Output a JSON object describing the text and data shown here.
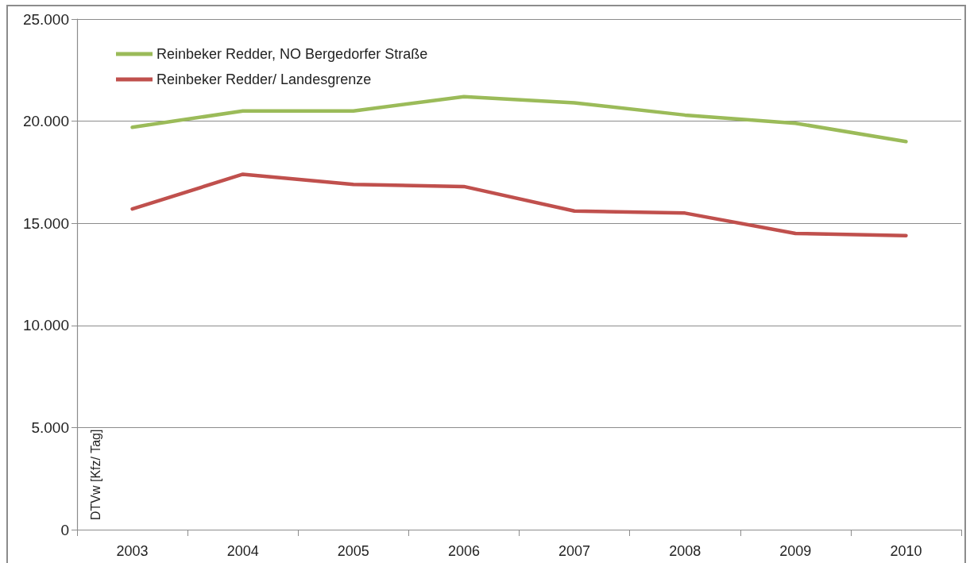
{
  "chart_data": {
    "type": "line",
    "ylabel": "DTVw [Kfz/ Tag]",
    "categories": [
      "2003",
      "2004",
      "2005",
      "2006",
      "2007",
      "2008",
      "2009",
      "2010"
    ],
    "series": [
      {
        "name": "Reinbeker Redder, NO Bergedorfer Straße",
        "color": "#9bbb59",
        "values": [
          19700,
          20500,
          20500,
          21200,
          20900,
          20300,
          19900,
          19000
        ]
      },
      {
        "name": "Reinbeker Redder/ Landesgrenze",
        "color": "#c0504d",
        "values": [
          15700,
          17400,
          16900,
          16800,
          15600,
          15500,
          14500,
          14400
        ]
      }
    ],
    "ylim": [
      0,
      25000
    ],
    "yticks": [
      0,
      {
        "value": 5000,
        "label": "5.000"
      },
      {
        "value": 10000,
        "label": "10.000"
      },
      {
        "value": 15000,
        "label": "15.000"
      },
      {
        "value": 20000,
        "label": "20.000"
      },
      {
        "value": 25000,
        "label": "25.000"
      }
    ],
    "grid": "y",
    "legend": "top left",
    "marker": "none",
    "line_style": "solid"
  }
}
